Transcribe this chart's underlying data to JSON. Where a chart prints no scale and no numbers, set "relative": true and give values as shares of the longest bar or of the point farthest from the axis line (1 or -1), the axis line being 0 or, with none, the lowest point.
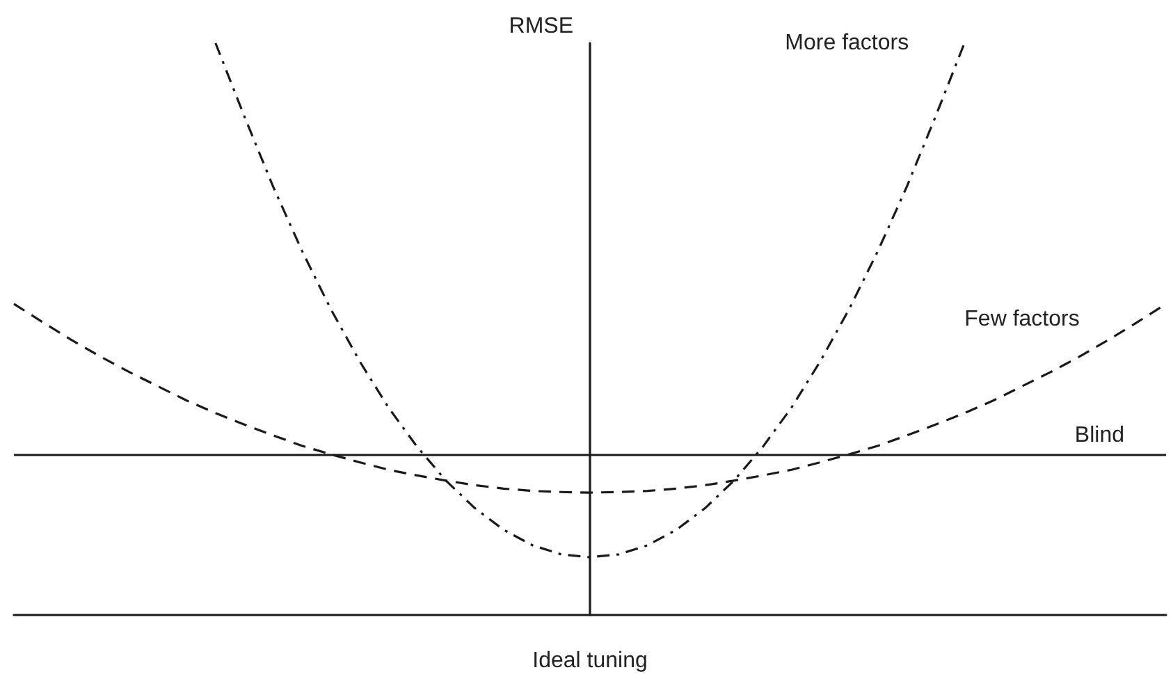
{
  "chart_data": {
    "type": "line",
    "relative": true,
    "xlabel": "Ideal tuning",
    "ylabel": "RMSE",
    "categories": [
      null,
      null,
      null,
      null,
      null,
      null,
      null,
      null,
      null,
      null,
      null,
      null,
      null,
      null,
      null,
      null,
      null,
      null,
      null,
      null,
      null,
      null,
      null,
      null,
      null,
      null,
      null,
      null,
      null,
      null,
      null,
      null,
      null,
      null,
      null,
      null,
      null,
      null,
      null,
      null,
      null
    ],
    "series": [
      {
        "name": "More factors",
        "color": "#1a1a1a",
        "line_style": "dashdot",
        "values": [
          null,
          null,
          null,
          null,
          null,
          null,
          null,
          1.0,
          0.872,
          0.749,
          0.637,
          0.535,
          0.444,
          0.363,
          0.294,
          0.235,
          0.187,
          0.149,
          0.122,
          0.106,
          0.101,
          0.106,
          0.122,
          0.149,
          0.187,
          0.235,
          0.294,
          0.363,
          0.444,
          0.535,
          0.637,
          0.749,
          0.872,
          1.0,
          null,
          null,
          null,
          null,
          null,
          null,
          null
        ]
      },
      {
        "name": "Few factors",
        "color": "#1a1a1a",
        "line_style": "dashed",
        "values": [
          0.544,
          0.512,
          0.481,
          0.452,
          0.425,
          0.4,
          0.375,
          0.353,
          0.333,
          0.314,
          0.296,
          0.281,
          0.267,
          0.254,
          0.244,
          0.235,
          0.227,
          0.221,
          0.217,
          0.215,
          0.214,
          0.215,
          0.217,
          0.221,
          0.227,
          0.235,
          0.244,
          0.254,
          0.267,
          0.281,
          0.296,
          0.314,
          0.333,
          0.353,
          0.375,
          0.4,
          0.425,
          0.452,
          0.481,
          0.512,
          0.544
        ]
      }
    ],
    "ref_lines": [
      {
        "axis": "y",
        "value": 0.281,
        "label": "Blind",
        "color": "#1a1a1a",
        "line_style": "solid"
      }
    ],
    "grid": false,
    "legend": false,
    "marker": "none",
    "tick_labels": false
  }
}
